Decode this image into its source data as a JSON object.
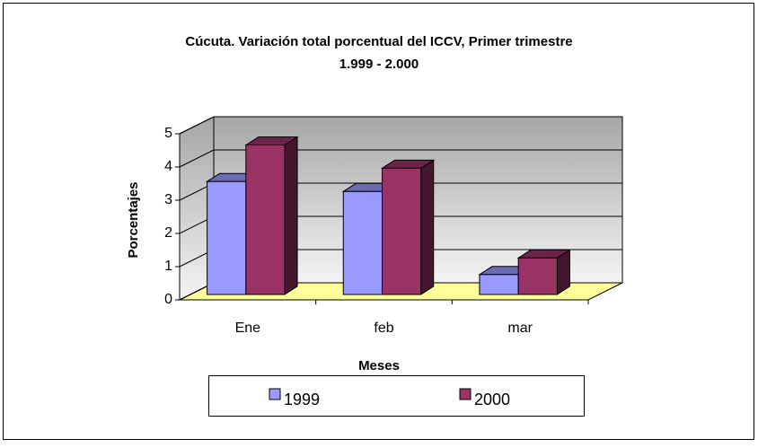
{
  "chart_data": {
    "type": "bar3d",
    "title": [
      "Cúcuta. Variación total porcentual del ICCV, Primer trimestre",
      "1.999 - 2.000"
    ],
    "x_label": "Meses",
    "y_label": "Porcentajes",
    "categories": [
      "Ene",
      "feb",
      "mar"
    ],
    "series": [
      {
        "name": "1999",
        "color": "#9999ff",
        "values": [
          3.4,
          3.1,
          0.6
        ]
      },
      {
        "name": "2000",
        "color": "#993366",
        "values": [
          4.5,
          3.8,
          1.1
        ]
      }
    ],
    "ylim": [
      0,
      5
    ],
    "yticks": [
      0,
      1,
      2,
      3,
      4,
      5
    ],
    "grid": true
  }
}
